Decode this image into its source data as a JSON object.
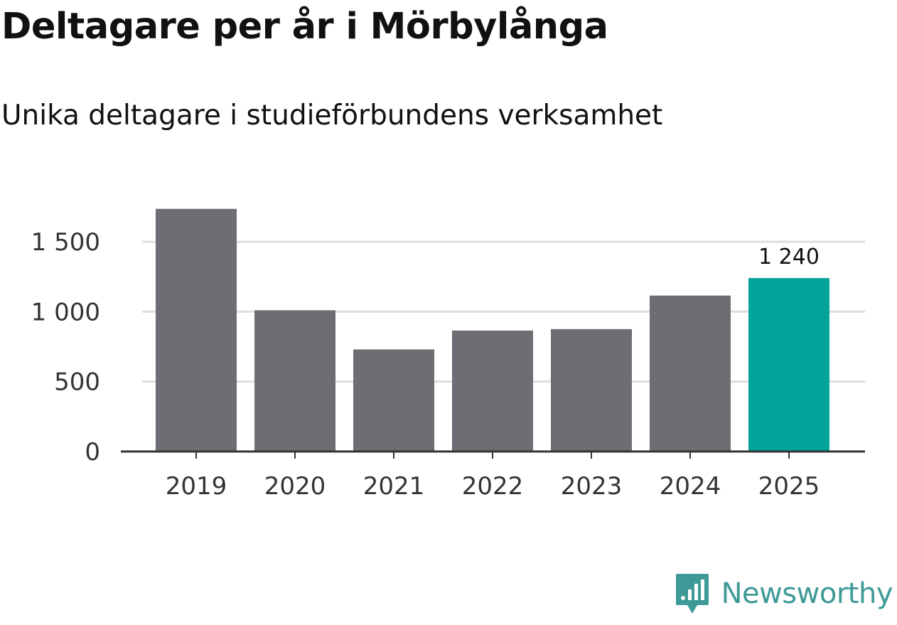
{
  "header": {
    "title": "Deltagare per år i Mörbylånga",
    "subtitle": "Unika deltagare i studieförbundens verksamhet"
  },
  "brand": {
    "name": "Newsworthy",
    "icon": "newsworthy-logo-icon",
    "color": "#3d9a96"
  },
  "colors": {
    "bar": "#6e6d73",
    "highlight": "#00a499",
    "grid": "#dddddd",
    "axis": "#333333"
  },
  "chart_data": {
    "type": "bar",
    "categories": [
      "2019",
      "2020",
      "2021",
      "2022",
      "2023",
      "2024",
      "2025"
    ],
    "values": [
      1735,
      1010,
      730,
      865,
      875,
      1115,
      1240
    ],
    "highlight_index": 6,
    "data_labels": [
      {
        "index": 6,
        "text": "1 240"
      }
    ],
    "yticks": [
      {
        "value": 0,
        "label": "0"
      },
      {
        "value": 500,
        "label": "500"
      },
      {
        "value": 1000,
        "label": "1 000"
      },
      {
        "value": 1500,
        "label": "1 500"
      }
    ],
    "ylim": [
      0,
      1780
    ],
    "grid": true,
    "xlabel": "",
    "ylabel": ""
  }
}
